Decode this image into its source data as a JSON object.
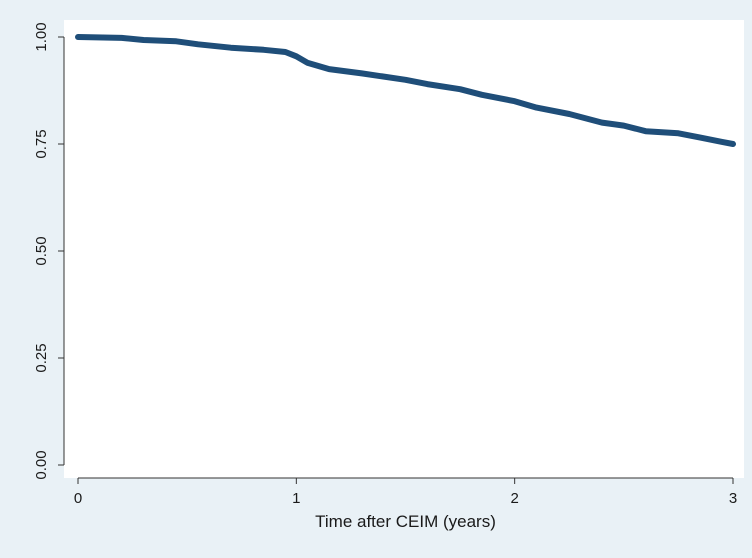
{
  "chart_data": {
    "type": "line",
    "title": "",
    "xlabel": "Time after CEIM (years)",
    "ylabel": "",
    "xlim": [
      0,
      3
    ],
    "ylim": [
      0,
      1
    ],
    "x_ticks": [
      0,
      1,
      2,
      3
    ],
    "y_ticks": [
      0.0,
      0.25,
      0.5,
      0.75,
      1.0
    ],
    "x_tick_labels": [
      "0",
      "1",
      "2",
      "3"
    ],
    "y_tick_labels": [
      "0.00",
      "0.25",
      "0.50",
      "0.75",
      "1.00"
    ],
    "grid": false,
    "legend": "none",
    "colors": {
      "line": "#1f4e79",
      "plot_bg": "#ffffff",
      "outer_bg": "#e9f1f6",
      "axis": "#333333"
    },
    "series": [
      {
        "x": [
          0,
          0.2,
          0.3,
          0.45,
          0.55,
          0.7,
          0.85,
          0.95,
          1.0,
          1.05,
          1.15,
          1.3,
          1.5,
          1.6,
          1.75,
          1.85,
          2.0,
          2.1,
          2.25,
          2.4,
          2.5,
          2.6,
          2.75,
          2.85,
          2.95,
          3.0
        ],
        "y": [
          1.0,
          0.998,
          0.993,
          0.99,
          0.983,
          0.975,
          0.97,
          0.965,
          0.955,
          0.94,
          0.925,
          0.915,
          0.9,
          0.89,
          0.878,
          0.865,
          0.85,
          0.835,
          0.82,
          0.8,
          0.793,
          0.78,
          0.775,
          0.765,
          0.755,
          0.75
        ]
      }
    ]
  }
}
